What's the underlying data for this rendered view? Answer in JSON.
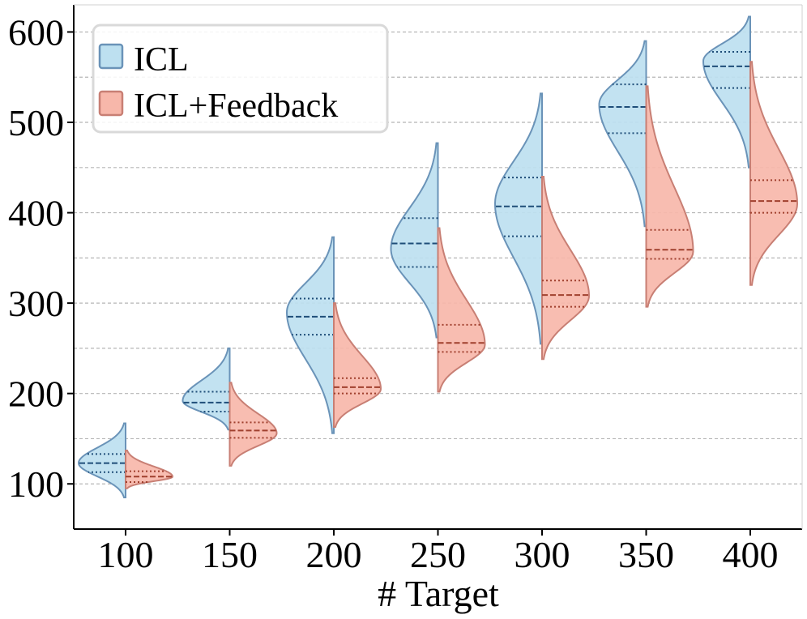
{
  "chart_data": {
    "type": "split-violin",
    "xlabel": "# Target",
    "ylabel": "",
    "ylim": [
      50,
      630
    ],
    "yticks": [
      100,
      200,
      300,
      400,
      500,
      600
    ],
    "ygrid_minor": [
      150,
      250,
      350,
      450,
      550
    ],
    "categories": [
      "100",
      "150",
      "200",
      "250",
      "300",
      "350",
      "400"
    ],
    "legend_position": "top-left",
    "series": [
      {
        "name": "ICL",
        "side": "left",
        "fill": "#bde0f0",
        "edge": "#6a93b8",
        "quartile_color": "#1f4e79",
        "violins": [
          {
            "min": 85,
            "max": 167,
            "q1": 113,
            "median": 123,
            "q3": 133,
            "mode": 123
          },
          {
            "min": 160,
            "max": 250,
            "q1": 180,
            "median": 190,
            "q3": 202,
            "mode": 192
          },
          {
            "min": 156,
            "max": 373,
            "q1": 265,
            "median": 285,
            "q3": 305,
            "mode": 290
          },
          {
            "min": 262,
            "max": 477,
            "q1": 340,
            "median": 366,
            "q3": 394,
            "mode": 360
          },
          {
            "min": 255,
            "max": 532,
            "q1": 374,
            "median": 407,
            "q3": 439,
            "mode": 410
          },
          {
            "min": 385,
            "max": 590,
            "q1": 488,
            "median": 517,
            "q3": 542,
            "mode": 520
          },
          {
            "min": 450,
            "max": 617,
            "q1": 538,
            "median": 562,
            "q3": 578,
            "mode": 568
          }
        ]
      },
      {
        "name": "ICL+Feedback",
        "side": "right",
        "fill": "#f7b7aa",
        "edge": "#c87f74",
        "quartile_color": "#a0402e",
        "violins": [
          {
            "min": 95,
            "max": 137,
            "q1": 102,
            "median": 108,
            "q3": 114,
            "mode": 108
          },
          {
            "min": 120,
            "max": 212,
            "q1": 151,
            "median": 159,
            "q3": 168,
            "mode": 156
          },
          {
            "min": 163,
            "max": 300,
            "q1": 200,
            "median": 207,
            "q3": 217,
            "mode": 205
          },
          {
            "min": 202,
            "max": 383,
            "q1": 246,
            "median": 256,
            "q3": 276,
            "mode": 254
          },
          {
            "min": 238,
            "max": 440,
            "q1": 296,
            "median": 309,
            "q3": 325,
            "mode": 308
          },
          {
            "min": 296,
            "max": 540,
            "q1": 349,
            "median": 359,
            "q3": 381,
            "mode": 357
          },
          {
            "min": 320,
            "max": 567,
            "q1": 400,
            "median": 413,
            "q3": 436,
            "mode": 410
          }
        ]
      }
    ]
  }
}
